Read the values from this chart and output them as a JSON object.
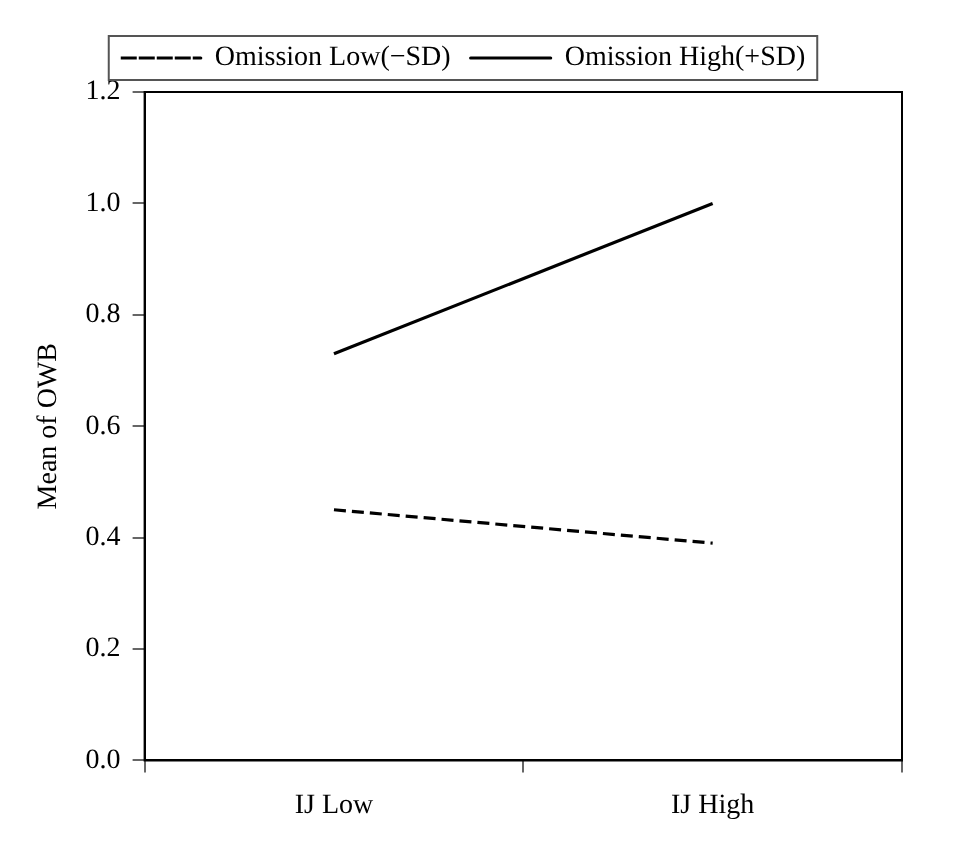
{
  "chart_data": {
    "type": "line",
    "ylabel": "Mean of OWB",
    "categories": [
      "IJ Low",
      "IJ High"
    ],
    "series": [
      {
        "name": "Omission Low(−SD)",
        "color": "#000000",
        "line_style": "dashed",
        "values": [
          0.45,
          0.39
        ]
      },
      {
        "name": "Omission High(+SD)",
        "color": "#000000",
        "line_style": "solid",
        "values": [
          0.73,
          1.0
        ]
      }
    ],
    "ylim": [
      0,
      1.2
    ],
    "yticks": [
      {
        "value": 0,
        "label": "0.0"
      },
      {
        "value": 0.2,
        "label": "0.2"
      },
      {
        "value": 0.4,
        "label": "0.4"
      },
      {
        "value": 0.6,
        "label": "0.6"
      },
      {
        "value": 0.8,
        "label": "0.8"
      },
      {
        "value": 1,
        "label": "1.0"
      },
      {
        "value": 1.2,
        "label": "1.2"
      }
    ],
    "grid": false,
    "legend": "top",
    "marker": "none"
  }
}
